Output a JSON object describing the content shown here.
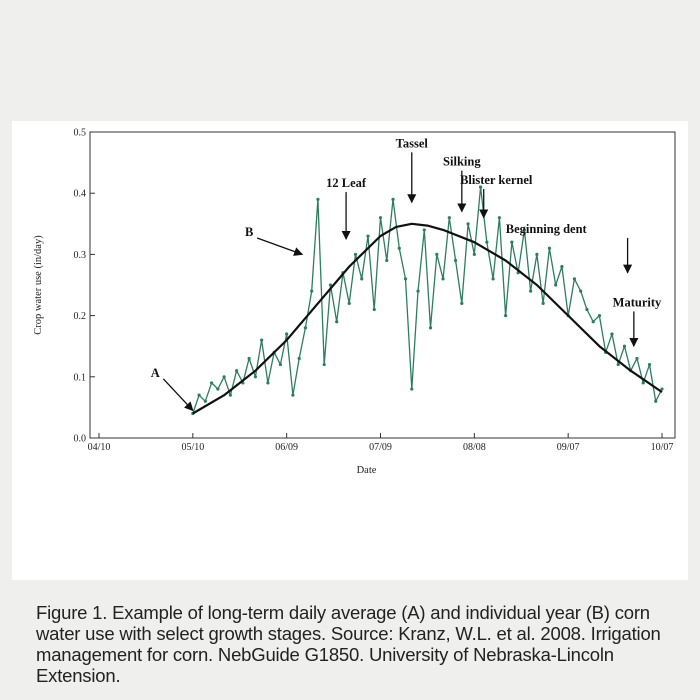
{
  "chart_data": {
    "type": "line",
    "xlabel": "Date",
    "ylabel": "Crop water use (in/day)",
    "x_ticks": [
      "04/10",
      "05/10",
      "06/09",
      "07/09",
      "08/08",
      "09/07",
      "10/07"
    ],
    "ylim": [
      0,
      0.5
    ],
    "y_ticks": [
      "0.0",
      "0.1",
      "0.2",
      "0.3",
      "0.4",
      "0.5"
    ],
    "grid": false,
    "series": [
      {
        "name": "B",
        "color": "#2e7d5e",
        "x_days": [
          0,
          2,
          4,
          6,
          8,
          10,
          12,
          14,
          16,
          18,
          20,
          22,
          24,
          26,
          28,
          30,
          32,
          34,
          36,
          38,
          40,
          42,
          44,
          46,
          48,
          50,
          52,
          54,
          56,
          58,
          60,
          62,
          64,
          66,
          68,
          70,
          72,
          74,
          76,
          78,
          80,
          82,
          84,
          86,
          88,
          90,
          92,
          94,
          96,
          98,
          100,
          102,
          104,
          106,
          108,
          110,
          112,
          114,
          116,
          118,
          120,
          122,
          124,
          126,
          128,
          130,
          132,
          134,
          136,
          138,
          140,
          142,
          144,
          146,
          148,
          150
        ],
        "values": [
          0.04,
          0.07,
          0.06,
          0.09,
          0.08,
          0.1,
          0.07,
          0.11,
          0.09,
          0.13,
          0.1,
          0.16,
          0.09,
          0.14,
          0.12,
          0.17,
          0.07,
          0.13,
          0.18,
          0.24,
          0.39,
          0.12,
          0.25,
          0.19,
          0.27,
          0.22,
          0.3,
          0.26,
          0.33,
          0.21,
          0.36,
          0.29,
          0.39,
          0.31,
          0.26,
          0.08,
          0.24,
          0.34,
          0.18,
          0.3,
          0.26,
          0.36,
          0.29,
          0.22,
          0.35,
          0.3,
          0.41,
          0.32,
          0.26,
          0.36,
          0.2,
          0.32,
          0.27,
          0.34,
          0.24,
          0.3,
          0.22,
          0.31,
          0.25,
          0.28,
          0.2,
          0.26,
          0.24,
          0.21,
          0.19,
          0.2,
          0.14,
          0.17,
          0.12,
          0.15,
          0.11,
          0.13,
          0.09,
          0.12,
          0.06,
          0.08
        ]
      },
      {
        "name": "A",
        "color": "#111111",
        "x_days": [
          0,
          10,
          20,
          30,
          40,
          50,
          60,
          65,
          70,
          75,
          80,
          90,
          100,
          110,
          120,
          130,
          140,
          150
        ],
        "values": [
          0.04,
          0.07,
          0.11,
          0.16,
          0.22,
          0.28,
          0.33,
          0.345,
          0.35,
          0.347,
          0.34,
          0.32,
          0.29,
          0.25,
          0.2,
          0.15,
          0.11,
          0.075
        ]
      }
    ],
    "annotations": [
      {
        "label": "A",
        "x_day": -12,
        "y": 0.1,
        "target_day": 0,
        "target_y": 0.045
      },
      {
        "label": "B",
        "x_day": 18,
        "y": 0.33,
        "target_day": 35,
        "target_y": 0.3
      },
      {
        "label": "12 Leaf",
        "x_day": 49,
        "y": 0.41,
        "target_day": 49,
        "target_y": 0.325
      },
      {
        "label": "Tassel",
        "x_day": 70,
        "y": 0.475,
        "target_day": 70,
        "target_y": 0.385
      },
      {
        "label": "Silking",
        "x_day": 86,
        "y": 0.445,
        "target_day": 86,
        "target_y": 0.37
      },
      {
        "label": "Blister kernel",
        "x_day": 97,
        "y": 0.415,
        "target_day": 93,
        "target_y": 0.36
      },
      {
        "label": "Beginning dent",
        "x_day": 113,
        "y": 0.335,
        "target_day": 139,
        "target_y": 0.27
      },
      {
        "label": "Maturity",
        "x_day": 142,
        "y": 0.215,
        "target_day": 141,
        "target_y": 0.15
      }
    ]
  },
  "caption": "Figure 1. Example of long-term daily average (A) and individual year (B) corn water use with select growth stages. Source: Kranz, W.L. et al. 2008. Irrigation management for corn. NebGuide G1850. University of Nebraska-Lincoln Extension."
}
